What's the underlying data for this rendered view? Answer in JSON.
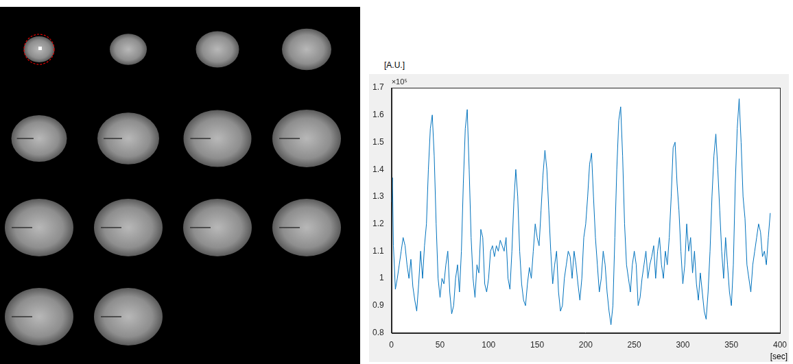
{
  "montage": {
    "slices": 14
  },
  "chart_data": {
    "type": "line",
    "ylabel": "[A.U.]",
    "xlabel": "[sec]",
    "annotations": [
      "×10⁵"
    ],
    "color": "#0072bd",
    "grid": false,
    "xlim": [
      0,
      400
    ],
    "xticks": [
      0,
      50,
      100,
      150,
      200,
      250,
      300,
      350,
      400
    ],
    "ylim": [
      0.8,
      1.7
    ],
    "yticks": [
      0.8,
      0.9,
      1,
      1.1,
      1.2,
      1.3,
      1.4,
      1.5,
      1.6,
      1.7
    ],
    "x": [
      0,
      1,
      2,
      4,
      6,
      8,
      10,
      12,
      14,
      16,
      18,
      20,
      22,
      24,
      26,
      28,
      30,
      32,
      34,
      36,
      38,
      40,
      42,
      44,
      46,
      48,
      50,
      52,
      54,
      56,
      58,
      60,
      62,
      64,
      66,
      68,
      70,
      72,
      74,
      76,
      78,
      80,
      82,
      84,
      86,
      88,
      90,
      92,
      94,
      96,
      98,
      100,
      102,
      104,
      106,
      108,
      110,
      112,
      114,
      116,
      118,
      120,
      122,
      124,
      126,
      128,
      130,
      132,
      134,
      136,
      138,
      140,
      142,
      144,
      146,
      148,
      150,
      152,
      154,
      156,
      158,
      160,
      162,
      164,
      166,
      168,
      170,
      172,
      174,
      176,
      178,
      180,
      182,
      184,
      186,
      188,
      190,
      192,
      194,
      196,
      198,
      200,
      202,
      204,
      206,
      208,
      210,
      212,
      214,
      216,
      218,
      220,
      222,
      224,
      226,
      228,
      230,
      232,
      234,
      236,
      238,
      240,
      242,
      244,
      246,
      248,
      250,
      252,
      254,
      256,
      258,
      260,
      262,
      264,
      266,
      268,
      270,
      272,
      274,
      276,
      278,
      280,
      282,
      284,
      286,
      288,
      290,
      292,
      294,
      296,
      298,
      300,
      302,
      304,
      306,
      308,
      310,
      312,
      314,
      316,
      318,
      320,
      322,
      324,
      326,
      328,
      330,
      332,
      334,
      336,
      338,
      340,
      342,
      344,
      346,
      348,
      350,
      352,
      354,
      356,
      358,
      360,
      362,
      364,
      366,
      368,
      370,
      372,
      374,
      376,
      378,
      380,
      382,
      384,
      386,
      388,
      390
    ],
    "values": [
      1.28,
      1.37,
      1.12,
      0.96,
      1.0,
      1.05,
      1.1,
      1.15,
      1.12,
      1.05,
      1.0,
      1.07,
      0.97,
      0.92,
      0.88,
      0.98,
      1.1,
      1.0,
      1.12,
      1.2,
      1.4,
      1.55,
      1.6,
      1.45,
      1.2,
      1.0,
      0.93,
      1.0,
      0.98,
      1.05,
      1.1,
      0.95,
      0.87,
      0.9,
      1.0,
      1.05,
      0.95,
      1.1,
      1.35,
      1.55,
      1.62,
      1.4,
      1.15,
      1.0,
      0.93,
      1.05,
      1.02,
      1.18,
      1.15,
      0.98,
      0.95,
      1.0,
      1.1,
      1.12,
      1.08,
      1.12,
      1.1,
      1.14,
      1.12,
      1.1,
      1.15,
      1.0,
      0.96,
      1.1,
      1.28,
      1.4,
      1.3,
      1.1,
      0.98,
      0.92,
      0.9,
      0.98,
      1.04,
      1.0,
      1.1,
      1.2,
      1.15,
      1.12,
      1.25,
      1.38,
      1.47,
      1.4,
      1.25,
      1.1,
      0.98,
      1.05,
      1.1,
      0.95,
      0.88,
      0.9,
      1.0,
      1.05,
      1.1,
      1.08,
      1.0,
      1.1,
      1.05,
      0.98,
      0.92,
      1.0,
      1.15,
      1.2,
      1.3,
      1.42,
      1.46,
      1.3,
      1.15,
      1.05,
      0.95,
      1.0,
      1.1,
      1.05,
      0.95,
      0.88,
      0.83,
      0.9,
      1.15,
      1.4,
      1.58,
      1.63,
      1.45,
      1.2,
      1.05,
      1.0,
      0.95,
      1.05,
      1.1,
      1.05,
      0.9,
      0.93,
      1.0,
      1.05,
      1.1,
      1.0,
      1.05,
      1.08,
      1.12,
      1.0,
      1.1,
      1.15,
      1.05,
      1.0,
      1.1,
      1.05,
      1.15,
      1.3,
      1.48,
      1.5,
      1.35,
      1.25,
      1.1,
      0.98,
      1.05,
      1.2,
      1.1,
      1.15,
      1.02,
      1.1,
      0.98,
      0.92,
      1.02,
      0.95,
      0.88,
      0.85,
      0.95,
      1.1,
      1.3,
      1.45,
      1.53,
      1.4,
      1.25,
      1.1,
      1.0,
      1.15,
      1.05,
      0.95,
      0.9,
      1.05,
      1.35,
      1.55,
      1.66,
      1.5,
      1.3,
      1.22,
      1.05,
      1.0,
      0.95,
      1.05,
      1.1,
      1.15,
      1.2,
      1.17,
      1.08,
      1.1,
      1.05,
      1.15,
      1.24
    ]
  }
}
